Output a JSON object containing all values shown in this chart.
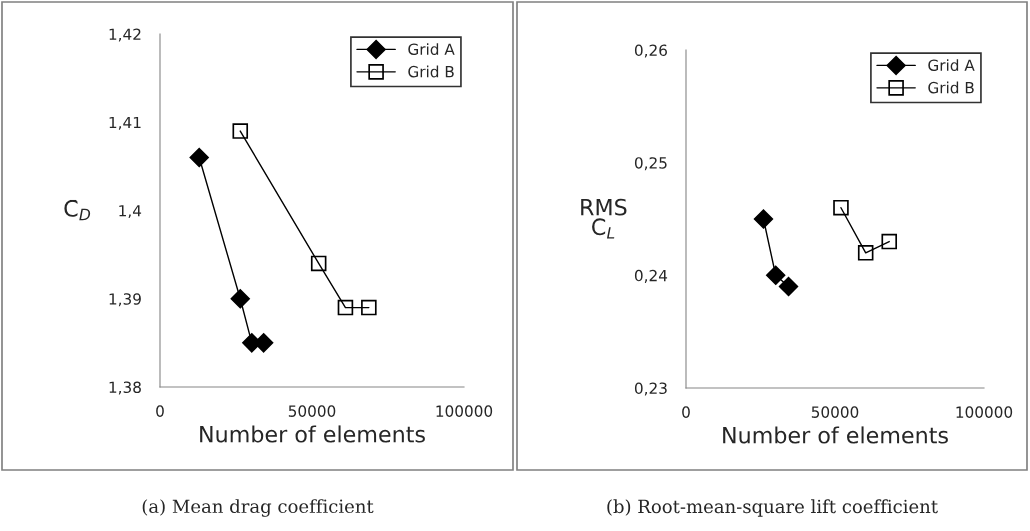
{
  "chart_data": [
    {
      "type": "line",
      "xlabel": "Number of elements",
      "ylabel": "C̄$_{D}$",
      "xlim": [
        0,
        100000
      ],
      "xticks": [
        0,
        50000,
        100000
      ],
      "ylim": [
        1.38,
        1.42
      ],
      "yticks": [
        {
          "value": 1.38,
          "label": "1,38"
        },
        {
          "value": 1.39,
          "label": "1,39"
        },
        {
          "value": 1.4,
          "label": "1,4"
        },
        {
          "value": 1.41,
          "label": "1,41"
        },
        {
          "value": 1.42,
          "label": "1,42"
        }
      ],
      "grid": false,
      "legend": "top right",
      "annotations": [
        "(a) Mean drag coefficient"
      ],
      "series": [
        {
          "name": "Grid A",
          "color": "#000000",
          "marker": "diamond",
          "x": [
            12900,
            26400,
            30200,
            34100
          ],
          "values": [
            1.406,
            1.39,
            1.385,
            1.385
          ]
        },
        {
          "name": "Grid B",
          "color": "#000000",
          "marker": "square",
          "x": [
            26400,
            52200,
            61000,
            68700
          ],
          "values": [
            1.409,
            1.394,
            1.389,
            1.389
          ]
        }
      ]
    },
    {
      "type": "line",
      "xlabel": "Number of elements",
      "ylabel": "RMS\nC$_{L}$",
      "xlim": [
        0,
        100000
      ],
      "xticks": [
        0,
        50000,
        100000
      ],
      "ylim": [
        0.23,
        0.26
      ],
      "yticks": [
        {
          "value": 0.23,
          "label": "0,23"
        },
        {
          "value": 0.24,
          "label": "0,24"
        },
        {
          "value": 0.25,
          "label": "0,25"
        },
        {
          "value": 0.26,
          "label": "0,26"
        }
      ],
      "grid": false,
      "legend": "top right",
      "annotations": [
        "(b) Root-mean-square lift coefficient"
      ],
      "series": [
        {
          "name": "Grid A",
          "color": "#000000",
          "marker": "diamond",
          "x": [
            26000,
            30100,
            34400
          ],
          "values": [
            0.245,
            0.24,
            0.239
          ]
        },
        {
          "name": "Grid B",
          "color": "#000000",
          "marker": "square",
          "x": [
            52000,
            60300,
            68200
          ],
          "values": [
            0.246,
            0.242,
            0.243
          ]
        }
      ]
    }
  ]
}
